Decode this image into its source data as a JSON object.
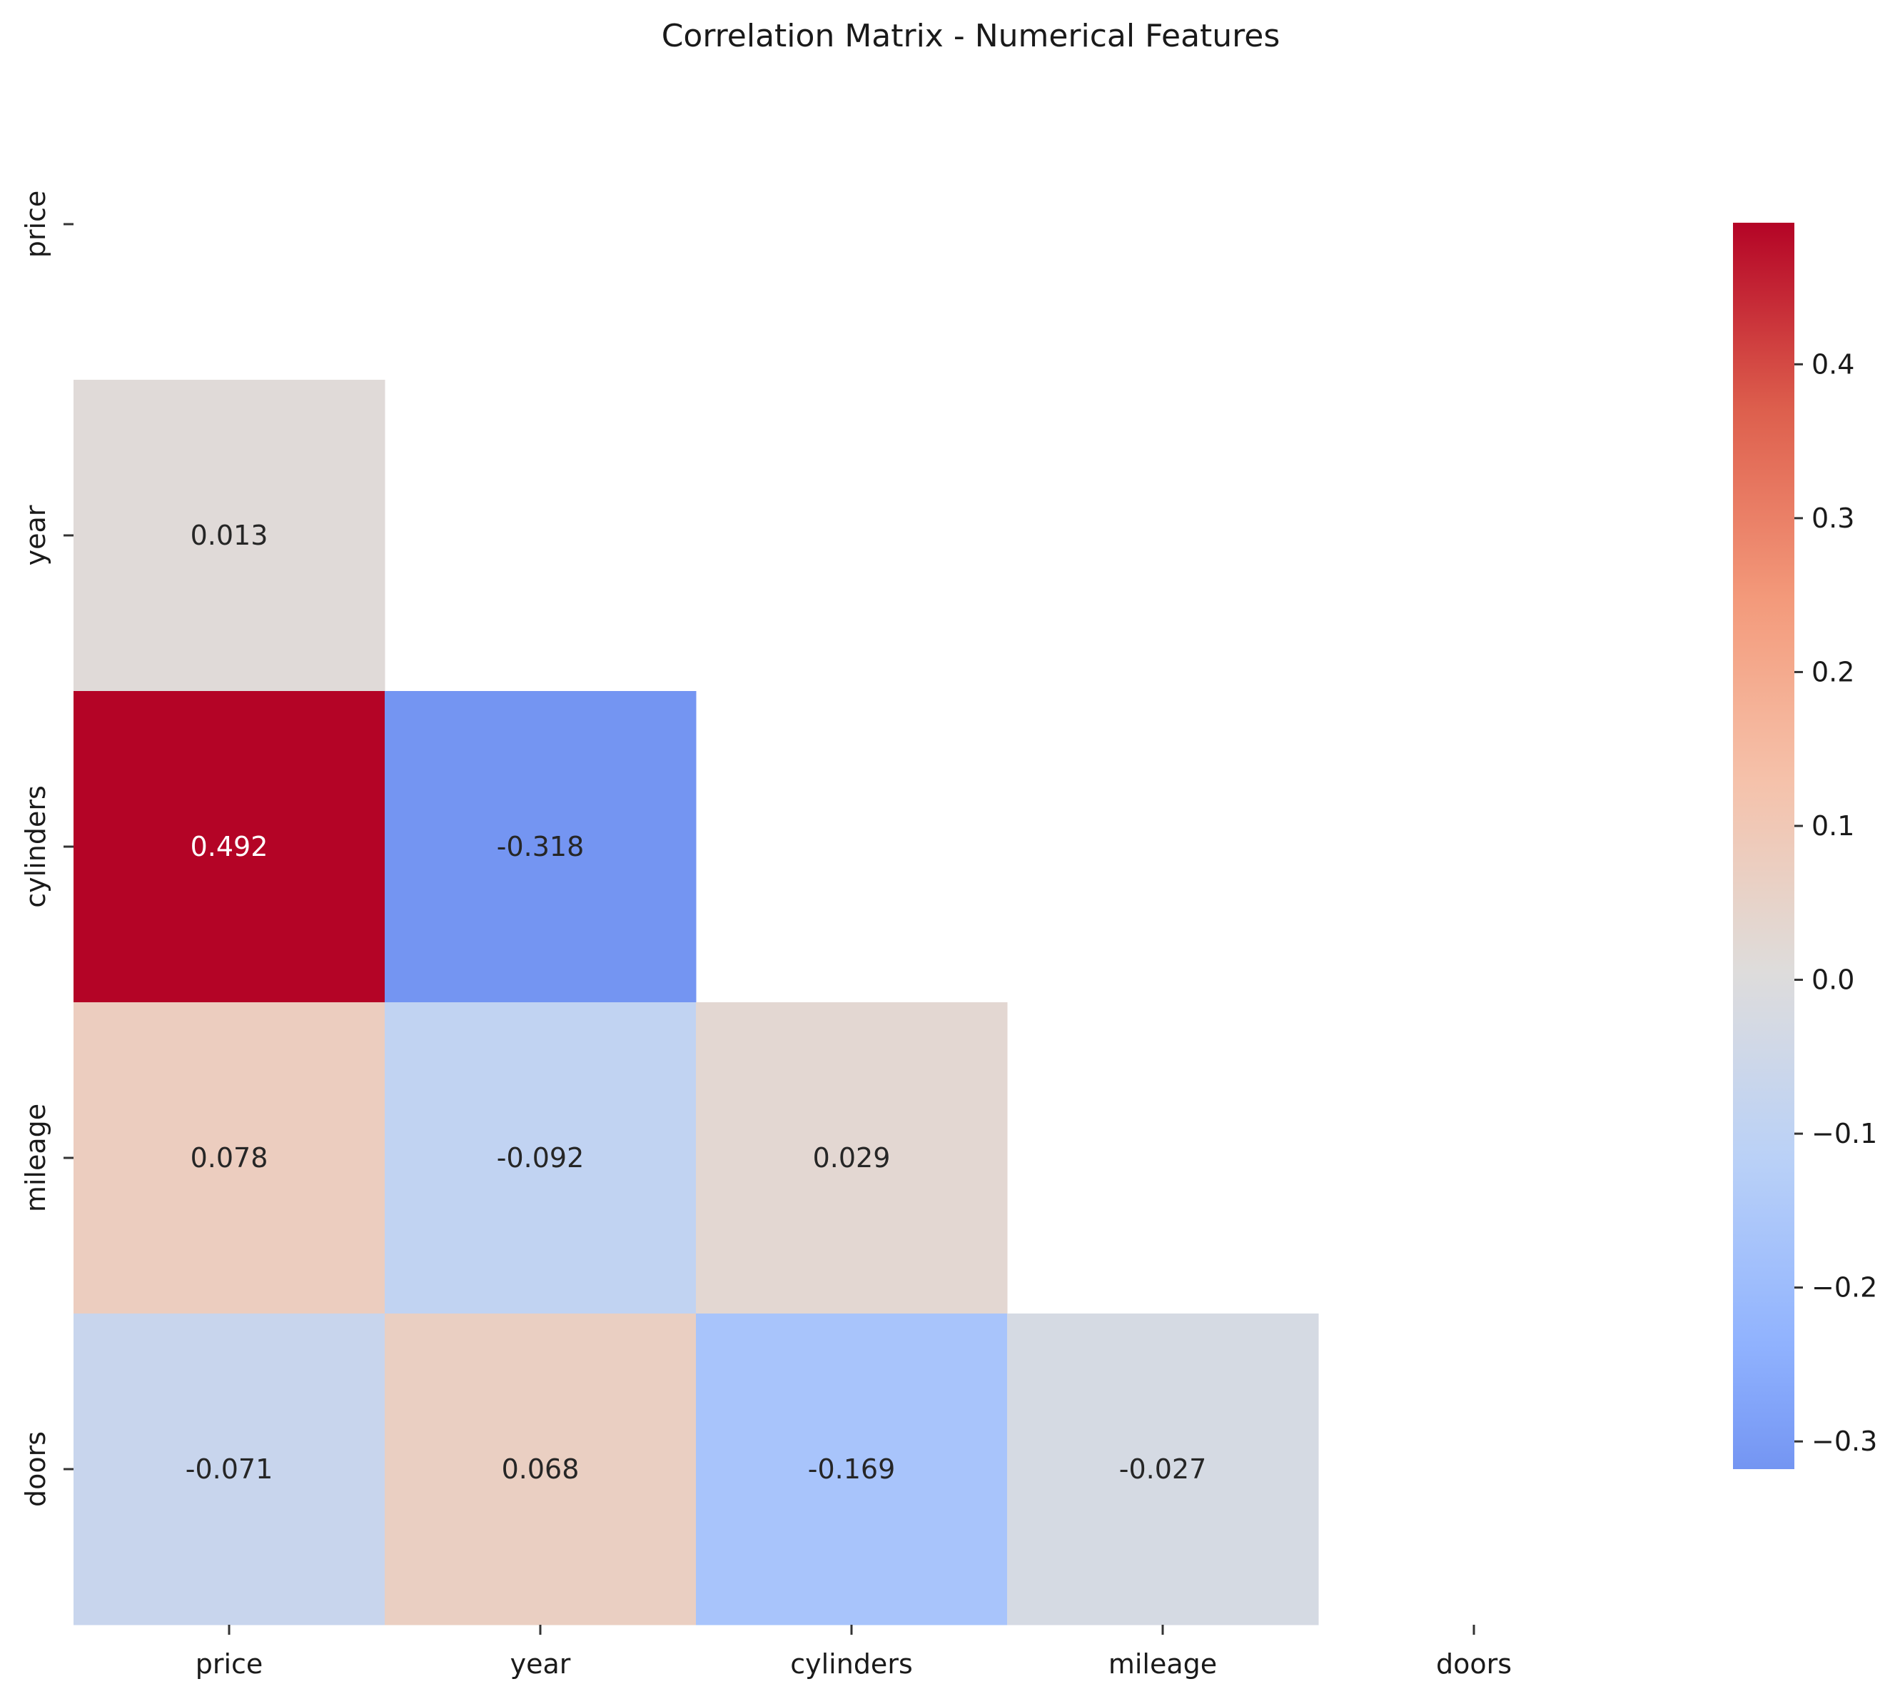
{
  "chart_data": {
    "type": "heatmap",
    "title": "Correlation Matrix - Numerical Features",
    "xlabel": "",
    "ylabel": "",
    "x_labels": [
      "price",
      "year",
      "cylinders",
      "mileage",
      "doors"
    ],
    "y_labels": [
      "price",
      "year",
      "cylinders",
      "mileage",
      "doors"
    ],
    "mask": "upper-triangle-including-diagonal",
    "cells": [
      {
        "row": 1,
        "col": 0,
        "value": 0.013,
        "label": "0.013"
      },
      {
        "row": 2,
        "col": 0,
        "value": 0.492,
        "label": "0.492"
      },
      {
        "row": 2,
        "col": 1,
        "value": -0.318,
        "label": "-0.318"
      },
      {
        "row": 3,
        "col": 0,
        "value": 0.078,
        "label": "0.078"
      },
      {
        "row": 3,
        "col": 1,
        "value": -0.092,
        "label": "-0.092"
      },
      {
        "row": 3,
        "col": 2,
        "value": 0.029,
        "label": "0.029"
      },
      {
        "row": 4,
        "col": 0,
        "value": -0.071,
        "label": "-0.071"
      },
      {
        "row": 4,
        "col": 1,
        "value": 0.068,
        "label": "0.068"
      },
      {
        "row": 4,
        "col": 2,
        "value": -0.169,
        "label": "-0.169"
      },
      {
        "row": 4,
        "col": 3,
        "value": -0.027,
        "label": "-0.027"
      }
    ],
    "colormap": "coolwarm",
    "colorbar": {
      "range": [
        -0.318,
        0.492
      ],
      "center": 0,
      "ticks": [
        -0.3,
        -0.2,
        -0.1,
        0.0,
        0.1,
        0.2,
        0.3,
        0.4
      ],
      "tick_labels": [
        "−0.3",
        "−0.2",
        "−0.1",
        "0.0",
        "0.1",
        "0.2",
        "0.3",
        "0.4"
      ],
      "placement": "right"
    },
    "grid": false
  }
}
